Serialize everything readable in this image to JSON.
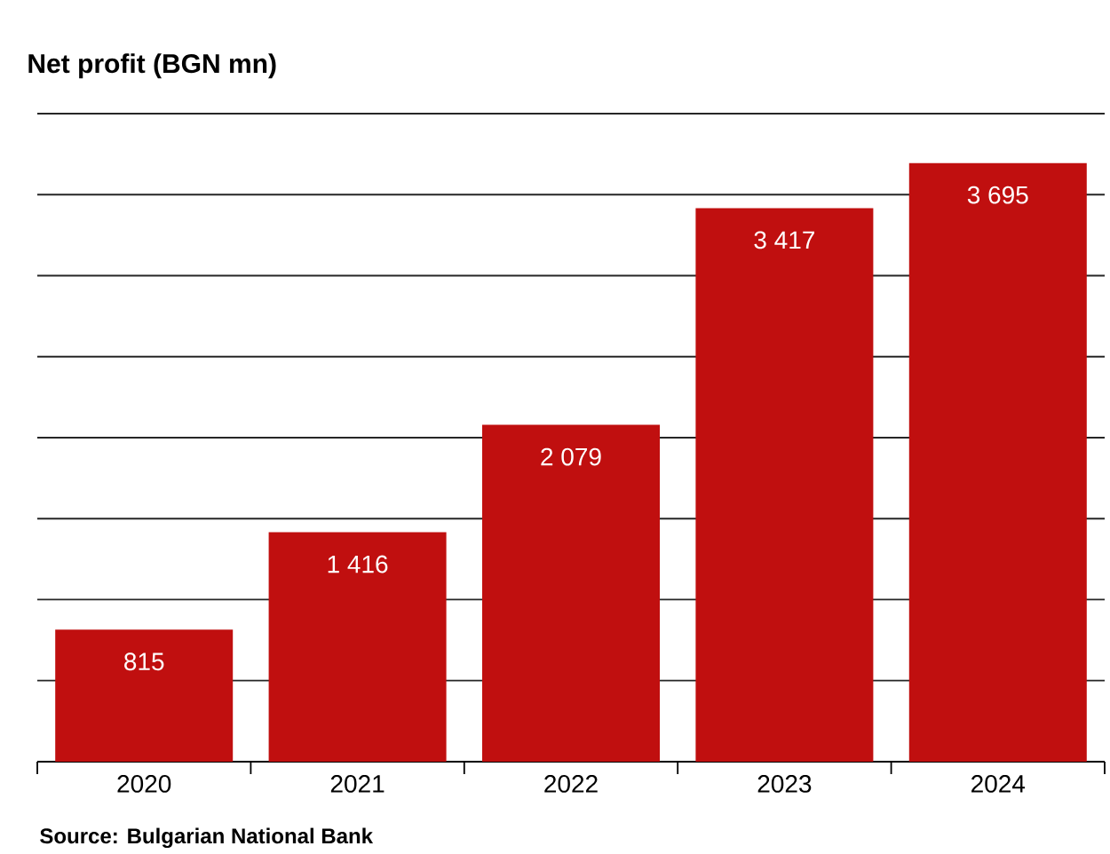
{
  "chart_data": {
    "type": "bar",
    "title": "Net profit (BGN mn)",
    "categories": [
      "2020",
      "2021",
      "2022",
      "2023",
      "2024"
    ],
    "values": [
      815,
      1416,
      2079,
      3417,
      3695
    ],
    "value_labels": [
      "815",
      "1 416",
      "2 079",
      "3 417",
      "3 695"
    ],
    "color": "#c00f0f",
    "ylim": [
      0,
      4000
    ],
    "yticks": [
      {
        "value": 0,
        "label": null
      },
      {
        "value": 500,
        "label": null
      },
      {
        "value": 1000,
        "label": null
      },
      {
        "value": 1500,
        "label": null
      },
      {
        "value": 2000,
        "label": null
      },
      {
        "value": 2500,
        "label": null
      },
      {
        "value": 3000,
        "label": null
      },
      {
        "value": 3500,
        "label": null
      },
      {
        "value": 4000,
        "label": null
      }
    ],
    "grid": "y",
    "tick_labels": "x",
    "annotations": [
      "Source: Bulgarian National Bank"
    ]
  }
}
